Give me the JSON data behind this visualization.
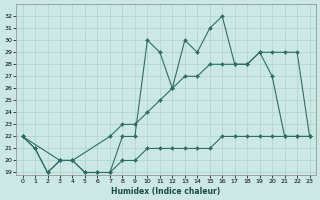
{
  "xlabel": "Humidex (Indice chaleur)",
  "bg_color": "#cce8e4",
  "grid_color": "#a8ccc8",
  "line_color": "#2d6e64",
  "xlim": [
    -0.5,
    23.5
  ],
  "ylim": [
    18.8,
    33.0
  ],
  "yticks": [
    19,
    20,
    21,
    22,
    23,
    24,
    25,
    26,
    27,
    28,
    29,
    30,
    31,
    32
  ],
  "xticks": [
    0,
    1,
    2,
    3,
    4,
    5,
    6,
    7,
    8,
    9,
    10,
    11,
    12,
    13,
    14,
    15,
    16,
    17,
    18,
    19,
    20,
    21,
    22,
    23
  ],
  "line1_x": [
    0,
    1,
    2,
    3,
    4,
    5,
    6,
    7,
    8,
    9,
    10,
    11,
    12,
    13,
    14,
    15,
    16,
    17,
    18,
    19,
    20,
    21,
    22,
    23
  ],
  "line1_y": [
    22,
    21,
    19,
    20,
    20,
    19,
    19,
    19,
    22,
    22,
    30,
    29,
    26,
    30,
    29,
    31,
    32,
    28,
    28,
    29,
    27,
    22,
    22,
    22
  ],
  "line2_x": [
    0,
    3,
    4,
    7,
    8,
    9,
    10,
    11,
    12,
    13,
    14,
    15,
    16,
    17,
    18,
    19,
    20,
    21,
    22,
    23
  ],
  "line2_y": [
    22,
    20,
    20,
    22,
    23,
    23,
    24,
    25,
    26,
    27,
    27,
    28,
    28,
    28,
    28,
    29,
    29,
    29,
    29,
    22
  ],
  "line3_x": [
    0,
    1,
    2,
    3,
    4,
    5,
    6,
    7,
    8,
    9,
    10,
    11,
    12,
    13,
    14,
    15,
    16,
    17,
    18,
    19,
    20,
    21,
    22,
    23
  ],
  "line3_y": [
    22,
    21,
    19,
    20,
    20,
    19,
    19,
    19,
    20,
    20,
    21,
    21,
    21,
    21,
    21,
    21,
    22,
    22,
    22,
    22,
    22,
    22,
    22,
    22
  ]
}
